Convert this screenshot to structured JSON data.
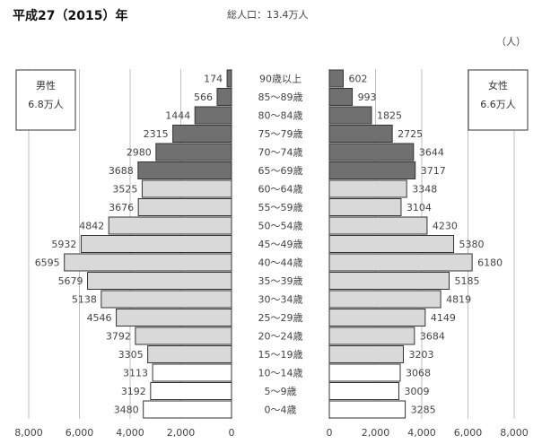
{
  "header": {
    "title": "平成27（2015）年",
    "subtitle": "総人口：13.4万人",
    "unit": "（人）"
  },
  "chart_data": {
    "type": "bar",
    "orientation": "horizontal-pyramid",
    "categories": [
      "90歳以上",
      "85～89歳",
      "80～84歳",
      "75～79歳",
      "70～74歳",
      "65～69歳",
      "60～64歳",
      "55～59歳",
      "50～54歳",
      "45～49歳",
      "40～44歳",
      "35～39歳",
      "30～34歳",
      "25～29歳",
      "20～24歳",
      "15～19歳",
      "10～14歳",
      "5～9歳",
      "0～4歳"
    ],
    "series": [
      {
        "name": "男性",
        "total_label": "6.8万人",
        "values": [
          174,
          566,
          1444,
          2315,
          2980,
          3688,
          3525,
          3676,
          4842,
          5932,
          6595,
          5679,
          5138,
          4546,
          3792,
          3305,
          3113,
          3192,
          3480
        ]
      },
      {
        "name": "女性",
        "total_label": "6.6万人",
        "values": [
          602,
          993,
          1825,
          2725,
          3644,
          3717,
          3348,
          3104,
          4230,
          5380,
          6180,
          5185,
          4819,
          4149,
          3684,
          3203,
          3068,
          3009,
          3285
        ]
      }
    ],
    "age_groups": [
      "elderly",
      "elderly",
      "elderly",
      "elderly",
      "elderly",
      "elderly",
      "working",
      "working",
      "working",
      "working",
      "working",
      "working",
      "working",
      "working",
      "working",
      "working",
      "child",
      "child",
      "child"
    ],
    "group_colors": {
      "elderly": "#707070",
      "working": "#d9d9d9",
      "child": "#ffffff"
    },
    "xlim": [
      0,
      8000
    ],
    "xticks": [
      0,
      2000,
      4000,
      6000,
      8000
    ],
    "xtick_labels": [
      "0",
      "2,000",
      "4,000",
      "6,000",
      "8,000"
    ],
    "grid": "vertical"
  }
}
